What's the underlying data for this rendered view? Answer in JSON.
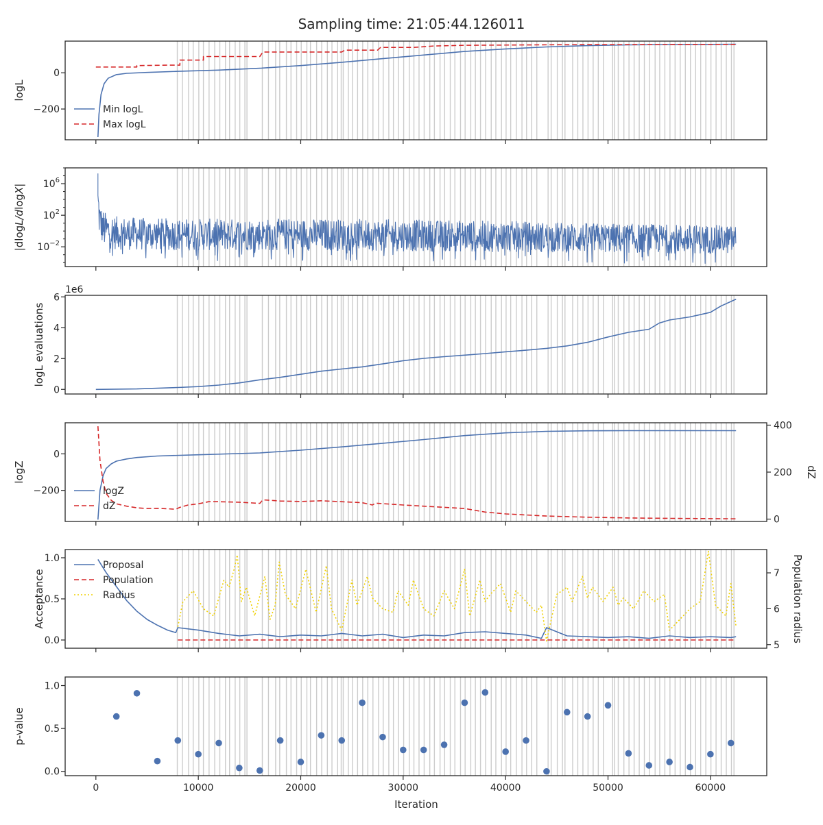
{
  "figure": {
    "title": "Sampling time: 21:05:44.126011",
    "xlabel": "Iteration",
    "x_ticks": [
      0,
      10000,
      20000,
      30000,
      40000,
      50000,
      60000
    ],
    "xlim": [
      -3000,
      65500
    ]
  },
  "colors": {
    "blue": "#4c72b0",
    "red": "#d62728",
    "yellow": "#f0d000",
    "vline": "#cccccc",
    "axis": "#262626"
  },
  "chart_data": [
    {
      "type": "line",
      "panel": "logL",
      "ylabel": "logL",
      "ylim": [
        -370,
        175
      ],
      "y_ticks": [
        -200,
        0
      ],
      "y_tick_labels": [
        "−200",
        "0"
      ],
      "legend": {
        "placement": "lower-left",
        "entries": [
          "Min logL",
          "Max logL"
        ]
      },
      "series": [
        {
          "name": "Min logL",
          "style": "solid",
          "color": "blue",
          "x": [
            200,
            300,
            500,
            800,
            1200,
            2000,
            3000,
            5000,
            8000,
            12000,
            16000,
            20000,
            24000,
            28000,
            32000,
            36000,
            40000,
            44000,
            48000,
            52000,
            56000,
            60000,
            62500
          ],
          "y": [
            -355,
            -230,
            -120,
            -60,
            -30,
            -10,
            -3,
            2,
            8,
            15,
            25,
            40,
            58,
            78,
            98,
            118,
            132,
            143,
            150,
            154,
            156,
            157,
            158
          ]
        },
        {
          "name": "Max logL",
          "style": "dashed",
          "color": "red",
          "x": [
            0,
            4000,
            4000,
            7000,
            7500,
            8200,
            8200,
            10500,
            10500,
            16000,
            16300,
            24000,
            24300,
            27500,
            27800,
            31000,
            33000,
            36000,
            45000,
            62500
          ],
          "y": [
            32,
            32,
            40,
            42,
            42,
            42,
            70,
            70,
            90,
            90,
            115,
            115,
            125,
            125,
            140,
            140,
            148,
            152,
            155,
            157
          ]
        }
      ]
    },
    {
      "type": "line",
      "panel": "dlogL_dlogX",
      "ylabel": "|dlogL/dlogX|",
      "scale": "log",
      "ylim_log10": [
        -4.5,
        8
      ],
      "y_ticks_log10": [
        -2,
        2,
        6
      ],
      "series": [
        {
          "name": "",
          "style": "noisy",
          "color": "blue",
          "x": [
            200,
            400,
            800,
            2000,
            5000,
            10000,
            20000,
            30000,
            40000,
            50000,
            60000,
            62500
          ],
          "upper": [
            7,
            3.5,
            2.4,
            1.8,
            1.6,
            1.5,
            1.5,
            1.4,
            1.2,
            0.9,
            0.7,
            0.6
          ],
          "lower": [
            -0.5,
            -1.5,
            -2.3,
            -2.6,
            -2.7,
            -2.7,
            -2.7,
            -2.8,
            -2.9,
            -3.0,
            -3.1,
            -3.1
          ]
        }
      ]
    },
    {
      "type": "line",
      "panel": "logL evaluations",
      "ylabel": "logL evaluations",
      "offset_label": "1e6",
      "ylim": [
        -0.3,
        6.1
      ],
      "y_ticks": [
        0,
        2,
        4,
        6
      ],
      "y_unit_scale": 1000000,
      "series": [
        {
          "name": "",
          "style": "solid",
          "color": "blue",
          "x": [
            0,
            4000,
            8000,
            10000,
            12000,
            14000,
            16000,
            18000,
            20000,
            22000,
            24000,
            26000,
            28000,
            30000,
            32000,
            34000,
            36000,
            38000,
            40000,
            42000,
            44000,
            46000,
            48000,
            50000,
            52000,
            54000,
            55000,
            56000,
            58000,
            60000,
            61000,
            62500
          ],
          "y": [
            0,
            0.03,
            0.12,
            0.18,
            0.28,
            0.42,
            0.62,
            0.78,
            0.98,
            1.18,
            1.32,
            1.46,
            1.65,
            1.86,
            2.01,
            2.12,
            2.22,
            2.32,
            2.44,
            2.54,
            2.66,
            2.82,
            3.05,
            3.4,
            3.7,
            3.9,
            4.3,
            4.5,
            4.7,
            5.0,
            5.4,
            5.85
          ]
        }
      ]
    },
    {
      "type": "line",
      "panel": "logZ",
      "ylabel": "logZ",
      "ylim": [
        -370,
        170
      ],
      "y_ticks": [
        -200,
        0
      ],
      "y_tick_labels": [
        "−200",
        "0"
      ],
      "ylabel_right": "dZ",
      "ylim_right": [
        -10,
        410
      ],
      "y_ticks_right": [
        0,
        200,
        400
      ],
      "legend": {
        "placement": "lower-left",
        "entries": [
          "logZ",
          "dZ"
        ]
      },
      "series": [
        {
          "name": "logZ",
          "style": "solid",
          "color": "blue",
          "axis": "left",
          "x": [
            200,
            400,
            700,
            1000,
            1500,
            2000,
            3000,
            4000,
            6000,
            10000,
            16000,
            20000,
            24000,
            28000,
            32000,
            36000,
            40000,
            44000,
            48000,
            52000,
            56000,
            62500
          ],
          "y": [
            -360,
            -200,
            -120,
            -80,
            -55,
            -40,
            -28,
            -20,
            -12,
            -5,
            5,
            20,
            38,
            58,
            78,
            100,
            115,
            123,
            126,
            127,
            127,
            127
          ]
        },
        {
          "name": "dZ",
          "style": "dashed",
          "color": "red",
          "axis": "right",
          "x": [
            200,
            400,
            700,
            1000,
            1500,
            2000,
            3000,
            4000,
            5000,
            6000,
            7000,
            7800,
            8200,
            9000,
            10000,
            11000,
            12000,
            14000,
            16000,
            16300,
            17000,
            18000,
            20000,
            22000,
            24000,
            26000,
            27000,
            27300,
            30000,
            34000,
            36000,
            38000,
            40000,
            44000,
            48000,
            52000,
            56000,
            60000,
            62500
          ],
          "y": [
            395,
            250,
            160,
            110,
            80,
            65,
            55,
            48,
            45,
            46,
            44,
            42,
            50,
            60,
            65,
            74,
            74,
            72,
            67,
            82,
            80,
            77,
            75,
            78,
            74,
            70,
            60,
            68,
            60,
            50,
            45,
            30,
            22,
            13,
            8,
            5,
            3,
            2,
            1
          ]
        }
      ]
    },
    {
      "type": "line",
      "panel": "acceptance",
      "ylabel": "Acceptance",
      "ylim": [
        -0.1,
        1.1
      ],
      "y_ticks": [
        0.0,
        0.5,
        1.0
      ],
      "y_tick_labels": [
        "0.0",
        "0.5",
        "1.0"
      ],
      "ylabel_right": "Population radius",
      "ylim_right": [
        4.9,
        7.65
      ],
      "y_ticks_right": [
        5,
        6,
        7
      ],
      "legend": {
        "placement": "upper-left",
        "entries": [
          "Proposal",
          "Population",
          "Radius"
        ]
      },
      "series": [
        {
          "name": "Proposal",
          "style": "solid",
          "color": "blue",
          "axis": "left",
          "x": [
            200,
            1000,
            2000,
            3000,
            4000,
            5000,
            6000,
            7000,
            7800,
            8000,
            10000,
            12000,
            14000,
            16000,
            18000,
            20000,
            22000,
            24000,
            26000,
            28000,
            30000,
            32000,
            34000,
            36000,
            38000,
            40000,
            42000,
            43500,
            44000,
            46000,
            48000,
            50000,
            52000,
            54000,
            56000,
            58000,
            60000,
            62000,
            62500
          ],
          "y": [
            0.98,
            0.82,
            0.65,
            0.48,
            0.35,
            0.25,
            0.18,
            0.12,
            0.09,
            0.15,
            0.12,
            0.08,
            0.05,
            0.07,
            0.04,
            0.06,
            0.05,
            0.08,
            0.05,
            0.07,
            0.03,
            0.06,
            0.05,
            0.09,
            0.1,
            0.08,
            0.06,
            0.02,
            0.15,
            0.05,
            0.04,
            0.03,
            0.04,
            0.02,
            0.05,
            0.03,
            0.04,
            0.03,
            0.04
          ]
        },
        {
          "name": "Population",
          "style": "dashed",
          "color": "red",
          "axis": "left",
          "x": [
            8000,
            62500
          ],
          "y": [
            0,
            0
          ]
        },
        {
          "name": "Radius",
          "style": "dotted",
          "color": "yellow",
          "axis": "right",
          "x": [
            8000,
            8500,
            9500,
            10500,
            11500,
            12500,
            13000,
            13500,
            13800,
            14200,
            14700,
            15500,
            16500,
            17000,
            17500,
            17900,
            18500,
            19500,
            20500,
            21000,
            21500,
            22500,
            23000,
            24000,
            25000,
            25500,
            26500,
            27000,
            28000,
            29000,
            29500,
            30500,
            31000,
            32000,
            33000,
            34000,
            35000,
            36000,
            36500,
            37500,
            38000,
            38500,
            39500,
            40500,
            41000,
            42000,
            43000,
            43500,
            44000,
            45000,
            46000,
            46500,
            47500,
            48000,
            48500,
            49500,
            50500,
            51000,
            51500,
            52500,
            53500,
            54500,
            55500,
            56000,
            57000,
            58000,
            59000,
            59800,
            60500,
            61500,
            62000,
            62500
          ],
          "y": [
            5.5,
            6.2,
            6.5,
            6.0,
            5.8,
            6.8,
            6.6,
            7.1,
            7.5,
            6.2,
            6.6,
            5.8,
            6.9,
            5.7,
            6.1,
            7.3,
            6.4,
            6.0,
            7.1,
            6.5,
            5.9,
            7.2,
            6.0,
            5.4,
            6.8,
            6.1,
            6.9,
            6.3,
            6.0,
            5.9,
            6.5,
            6.1,
            6.8,
            6.0,
            5.8,
            6.5,
            6.0,
            7.1,
            5.8,
            6.8,
            6.2,
            6.4,
            6.7,
            5.9,
            6.5,
            6.2,
            5.9,
            6.1,
            5.1,
            6.4,
            6.6,
            6.2,
            6.9,
            6.3,
            6.6,
            6.2,
            6.6,
            6.1,
            6.3,
            6.0,
            6.5,
            6.2,
            6.4,
            5.4,
            5.7,
            6.0,
            6.2,
            7.6,
            6.1,
            5.8,
            6.7,
            5.5
          ]
        }
      ]
    },
    {
      "type": "scatter",
      "panel": "p-value",
      "ylabel": "p-value",
      "ylim": [
        -0.05,
        1.1
      ],
      "y_ticks": [
        0.0,
        0.5,
        1.0
      ],
      "y_tick_labels": [
        "0.0",
        "0.5",
        "1.0"
      ],
      "series": [
        {
          "name": "",
          "color": "blue",
          "x": [
            2000,
            4000,
            6000,
            8000,
            10000,
            12000,
            14000,
            16000,
            18000,
            20000,
            22000,
            24000,
            26000,
            28000,
            30000,
            32000,
            34000,
            36000,
            38000,
            40000,
            42000,
            44000,
            46000,
            48000,
            50000,
            52000,
            54000,
            56000,
            58000,
            60000,
            62000
          ],
          "y": [
            0.64,
            0.91,
            0.12,
            0.36,
            0.2,
            0.33,
            0.04,
            0.01,
            0.36,
            0.11,
            0.42,
            0.36,
            0.8,
            0.4,
            0.25,
            0.25,
            0.31,
            0.8,
            0.92,
            0.23,
            0.36,
            0.0,
            0.69,
            0.64,
            0.77,
            0.21,
            0.07,
            0.11,
            0.05,
            0.2,
            0.33
          ]
        }
      ]
    }
  ],
  "vlines_x": [
    7950,
    8450,
    9050,
    9500,
    10050,
    10500,
    11050,
    11600,
    12100,
    12650,
    13050,
    13600,
    14050,
    14550,
    14750,
    16250,
    16850,
    17550,
    17950,
    18600,
    19050,
    19600,
    20050,
    20600,
    20950,
    21550,
    22050,
    22600,
    23050,
    23600,
    23950,
    24150,
    24650,
    25050,
    25550,
    26050,
    26550,
    27050,
    27600,
    28050,
    28600,
    29050,
    29550,
    30050,
    30600,
    31050,
    31550,
    32050,
    32600,
    33050,
    33600,
    34050,
    34600,
    35050,
    35600,
    36050,
    36600,
    37050,
    37550,
    38050,
    38600,
    39050,
    39600,
    40050,
    40500,
    41050,
    41600,
    42050,
    42550,
    43050,
    44150,
    44450,
    45050,
    45550,
    45800,
    46550,
    47050,
    47550,
    48050,
    48550,
    49050,
    49550,
    50450,
    50650,
    51000,
    51550,
    52050,
    52550,
    53050,
    53550,
    54050,
    54600,
    55050,
    55550,
    56050,
    56550,
    57050,
    57550,
    58050,
    58550,
    59050,
    59550,
    60050,
    60550,
    61050,
    61550,
    62050,
    62300
  ]
}
